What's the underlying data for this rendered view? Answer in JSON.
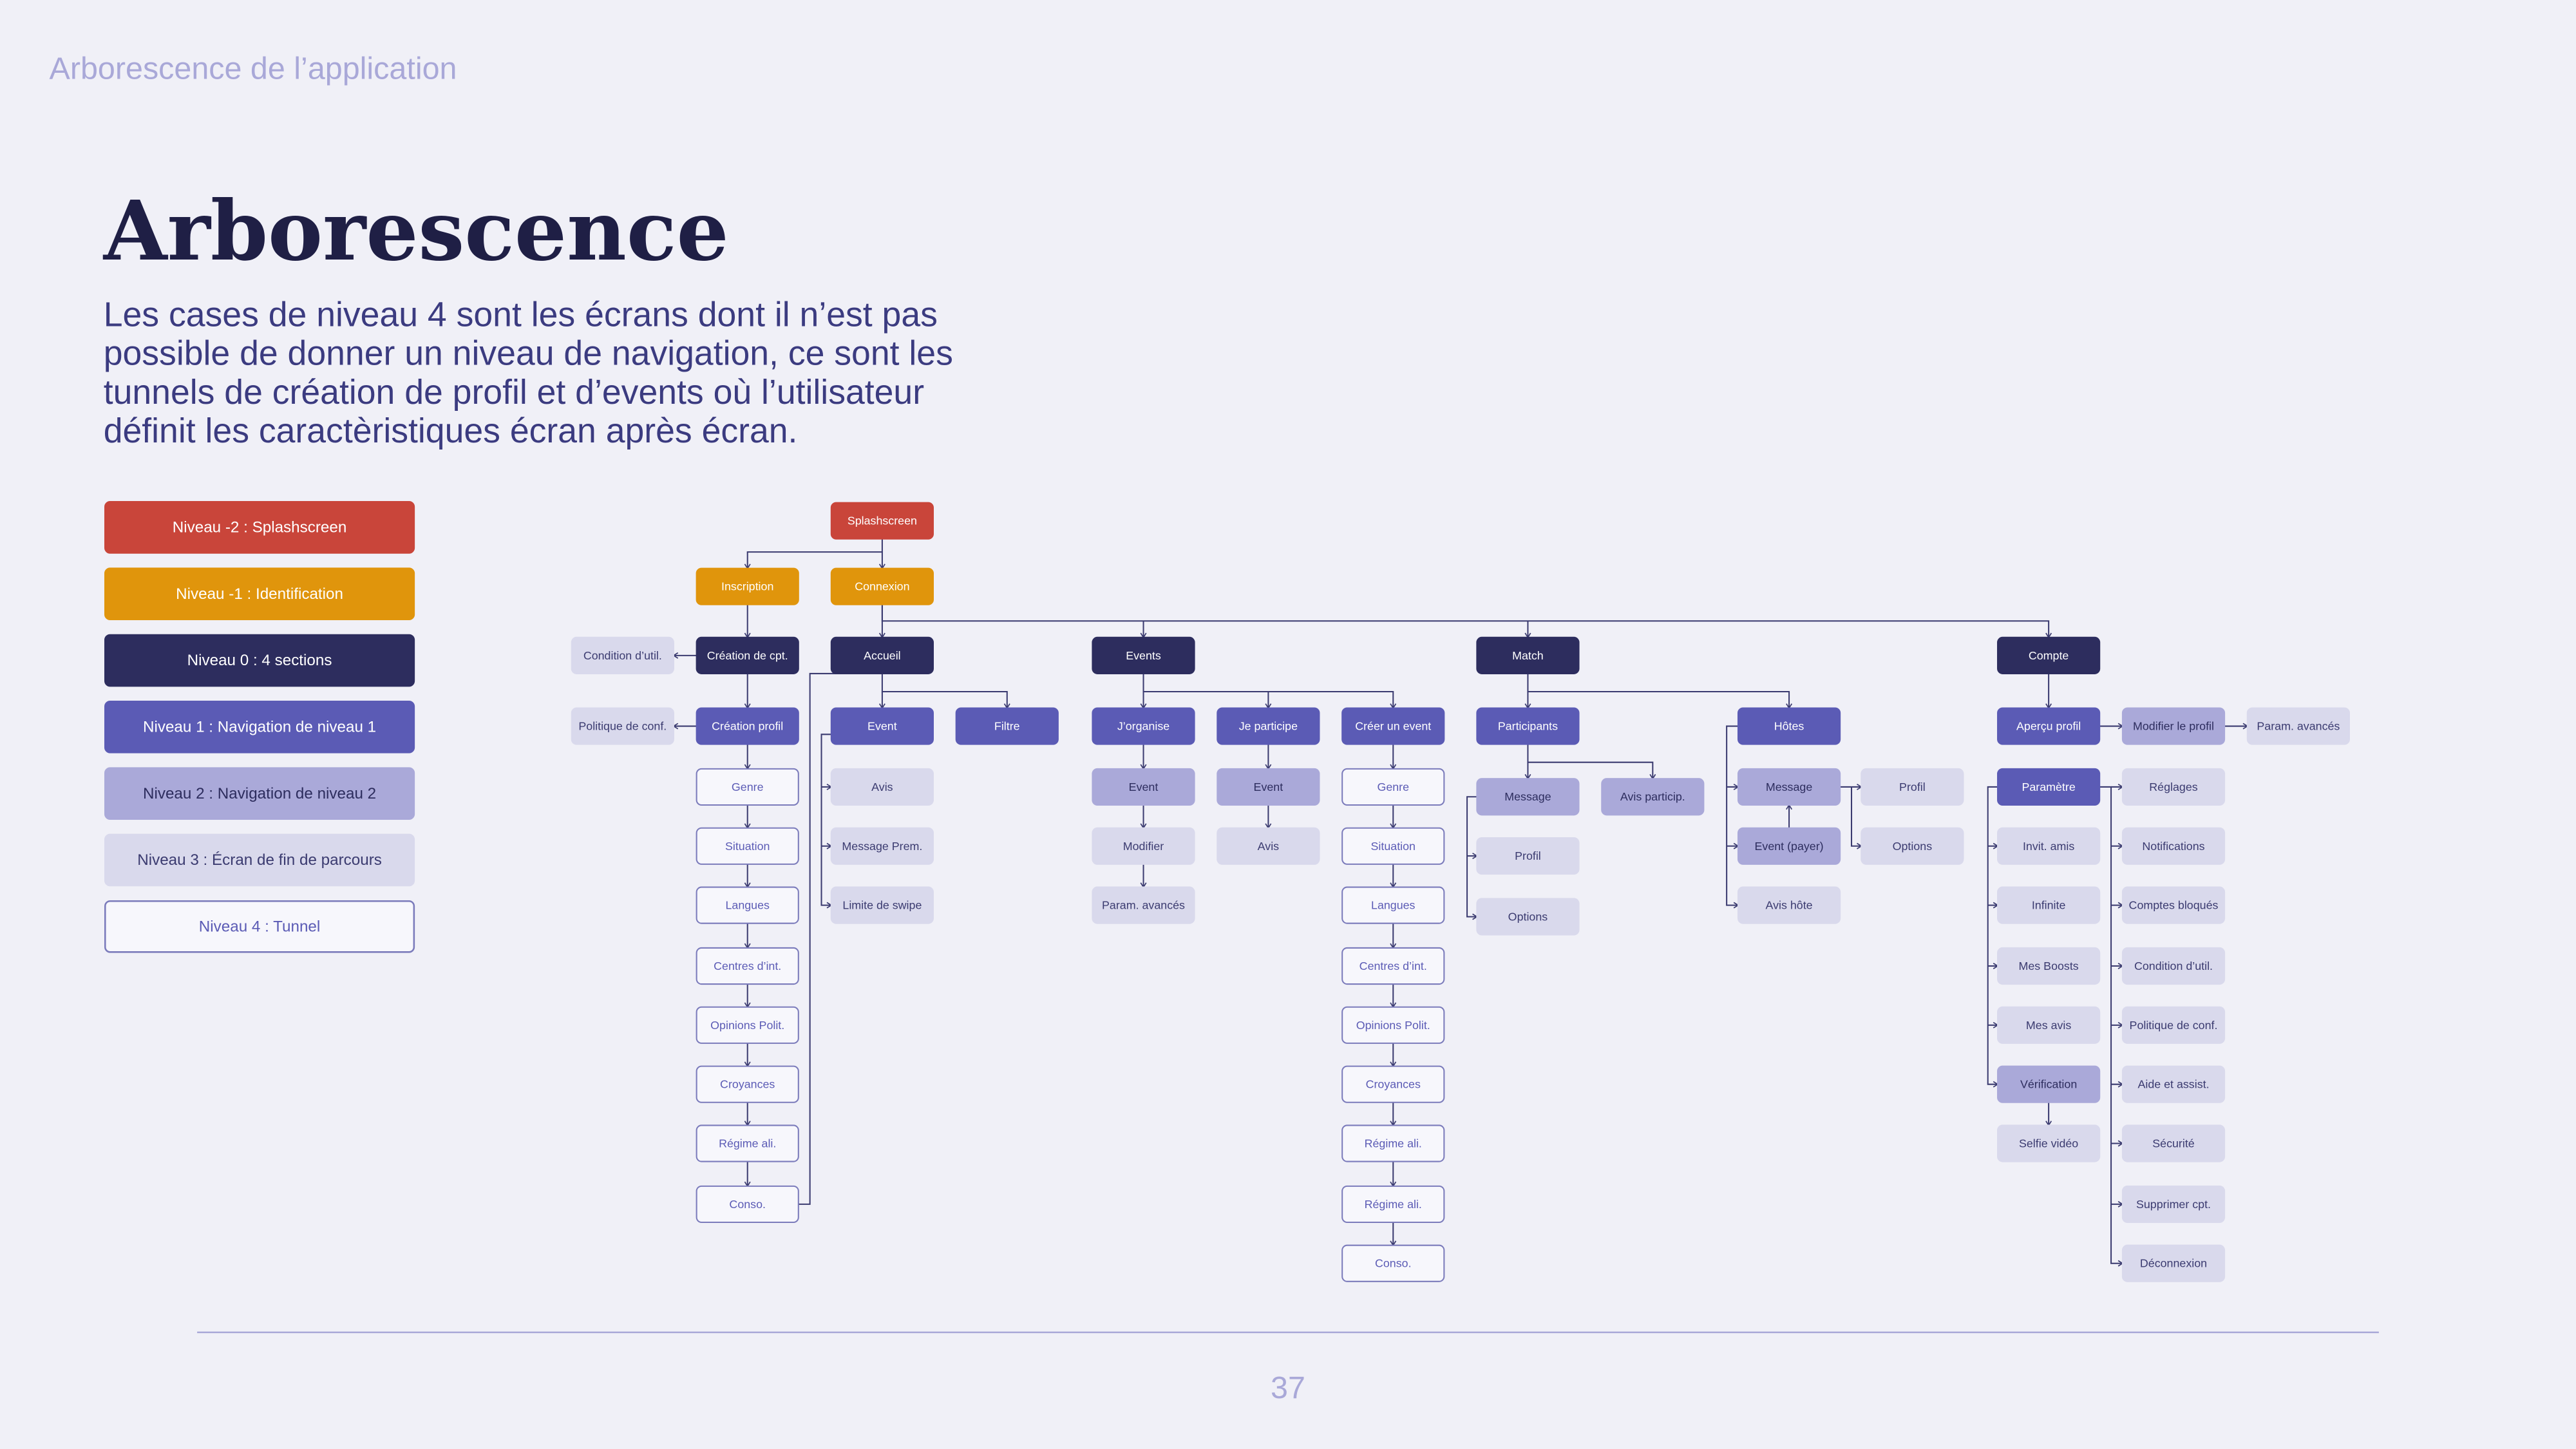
{
  "header": {
    "section": "Arborescence de l’application",
    "title": "Arborescence",
    "description": [
      "Les cases de niveau 4 sont les écrans dont il n’est pas",
      "possible de donner un niveau de navigation, ce sont les",
      "tunnels de création de profil et d’events où l’utilisateur",
      "définit les caractèristiques écran après écran."
    ]
  },
  "legend": [
    {
      "label": "Niveau -2 : Splashscreen",
      "fill": "#c9453a",
      "text": "#ffffff",
      "border": "#c9453a"
    },
    {
      "label": "Niveau -1 : Identification",
      "fill": "#e0950c",
      "text": "#ffffff",
      "border": "#e0950c"
    },
    {
      "label": "Niveau 0 : 4 sections",
      "fill": "#2d2d5e",
      "text": "#ffffff",
      "border": "#2d2d5e"
    },
    {
      "label": "Niveau 1 : Navigation de niveau 1",
      "fill": "#5b5bb5",
      "text": "#ffffff",
      "border": "#5b5bb5"
    },
    {
      "label": "Niveau 2 : Navigation de niveau 2",
      "fill": "#aaa9d9",
      "text": "#2d2d5e",
      "border": "#aaa9d9"
    },
    {
      "label": "Niveau 3 : Écran de fin de parcours",
      "fill": "#d9d9ec",
      "text": "#3b3b70",
      "border": "#d9d9ec"
    },
    {
      "label": "Niveau 4 : Tunnel",
      "fill": "#f7f7fc",
      "text": "#5b5bb5",
      "border": "#7b7bbb"
    }
  ],
  "nodes": [
    {
      "label": "Splashscreen",
      "fill": "#c9453a"
    },
    {
      "label": "Inscription",
      "fill": "#e0950c"
    },
    {
      "label": "Connexion",
      "fill": "#e0950c"
    },
    {
      "label": "Création de cpt.",
      "fill": "#2d2d5e"
    },
    {
      "label": "Accueil",
      "fill": "#2d2d5e"
    },
    {
      "label": "Events",
      "fill": "#2d2d5e"
    },
    {
      "label": "Match",
      "fill": "#2d2d5e"
    },
    {
      "label": "Compte",
      "fill": "#2d2d5e"
    },
    {
      "label": "Condition d’util.",
      "fill": "#d9d9ec"
    },
    {
      "label": "Politique de conf.",
      "fill": "#d9d9ec"
    },
    {
      "label": "Création profil",
      "fill": "#5b5bb5"
    },
    {
      "label": "Genre",
      "fill": "#f7f7fc"
    },
    {
      "label": "Situation",
      "fill": "#f7f7fc"
    },
    {
      "label": "Langues",
      "fill": "#f7f7fc"
    },
    {
      "label": "Centres d’int.",
      "fill": "#f7f7fc"
    },
    {
      "label": "Opinions Polit.",
      "fill": "#f7f7fc"
    },
    {
      "label": "Croyances",
      "fill": "#f7f7fc"
    },
    {
      "label": "Régime ali.",
      "fill": "#f7f7fc"
    },
    {
      "label": "Conso.",
      "fill": "#f7f7fc"
    },
    {
      "label": "Event",
      "fill": "#5b5bb5"
    },
    {
      "label": "Filtre",
      "fill": "#5b5bb5"
    },
    {
      "label": "Avis",
      "fill": "#d9d9ec"
    },
    {
      "label": "Message Prem.",
      "fill": "#d9d9ec"
    },
    {
      "label": "Limite de swipe",
      "fill": "#d9d9ec"
    },
    {
      "label": "J’organise",
      "fill": "#5b5bb5"
    },
    {
      "label": "Je participe",
      "fill": "#5b5bb5"
    },
    {
      "label": "Créer un event",
      "fill": "#5b5bb5"
    },
    {
      "label": "Event",
      "fill": "#aaa9d9"
    },
    {
      "label": "Modifier",
      "fill": "#d9d9ec"
    },
    {
      "label": "Param. avancés",
      "fill": "#d9d9ec"
    },
    {
      "label": "Event",
      "fill": "#aaa9d9"
    },
    {
      "label": "Avis",
      "fill": "#d9d9ec"
    },
    {
      "label": "Genre",
      "fill": "#f7f7fc"
    },
    {
      "label": "Situation",
      "fill": "#f7f7fc"
    },
    {
      "label": "Langues",
      "fill": "#f7f7fc"
    },
    {
      "label": "Centres d’int.",
      "fill": "#f7f7fc"
    },
    {
      "label": "Opinions Polit.",
      "fill": "#f7f7fc"
    },
    {
      "label": "Croyances",
      "fill": "#f7f7fc"
    },
    {
      "label": "Régime ali.",
      "fill": "#f7f7fc"
    },
    {
      "label": "Régime ali.",
      "fill": "#f7f7fc"
    },
    {
      "label": "Conso.",
      "fill": "#f7f7fc"
    },
    {
      "label": "Participants",
      "fill": "#5b5bb5"
    },
    {
      "label": "Message",
      "fill": "#aaa9d9"
    },
    {
      "label": "Avis particip.",
      "fill": "#aaa9d9"
    },
    {
      "label": "Profil",
      "fill": "#d9d9ec"
    },
    {
      "label": "Options",
      "fill": "#d9d9ec"
    },
    {
      "label": "Hôtes",
      "fill": "#5b5bb5"
    },
    {
      "label": "Message",
      "fill": "#aaa9d9"
    },
    {
      "label": "Event (payer)",
      "fill": "#aaa9d9"
    },
    {
      "label": "Avis hôte",
      "fill": "#d9d9ec"
    },
    {
      "label": "Profil",
      "fill": "#d9d9ec"
    },
    {
      "label": "Options",
      "fill": "#d9d9ec"
    },
    {
      "label": "Aperçu profil",
      "fill": "#5b5bb5"
    },
    {
      "label": "Paramètre",
      "fill": "#5b5bb5"
    },
    {
      "label": "Invit. amis",
      "fill": "#d9d9ec"
    },
    {
      "label": "Infinite",
      "fill": "#d9d9ec"
    },
    {
      "label": "Mes Boosts",
      "fill": "#d9d9ec"
    },
    {
      "label": "Mes avis",
      "fill": "#d9d9ec"
    },
    {
      "label": "Vérification",
      "fill": "#aaa9d9"
    },
    {
      "label": "Selfie vidéo",
      "fill": "#d9d9ec"
    },
    {
      "label": "Modifier le profil",
      "fill": "#aaa9d9"
    },
    {
      "label": "Param. avancés",
      "fill": "#d9d9ec"
    },
    {
      "label": "Réglages",
      "fill": "#d9d9ec"
    },
    {
      "label": "Notifications",
      "fill": "#d9d9ec"
    },
    {
      "label": "Comptes bloqués",
      "fill": "#d9d9ec"
    },
    {
      "label": "Condition d’util.",
      "fill": "#d9d9ec"
    },
    {
      "label": "Politique de conf.",
      "fill": "#d9d9ec"
    },
    {
      "label": "Aide et assist.",
      "fill": "#d9d9ec"
    },
    {
      "label": "Sécurité",
      "fill": "#d9d9ec"
    },
    {
      "label": "Supprimer cpt.",
      "fill": "#d9d9ec"
    },
    {
      "label": "Déconnexion",
      "fill": "#d9d9ec"
    }
  ],
  "footer": {
    "page": "37"
  }
}
